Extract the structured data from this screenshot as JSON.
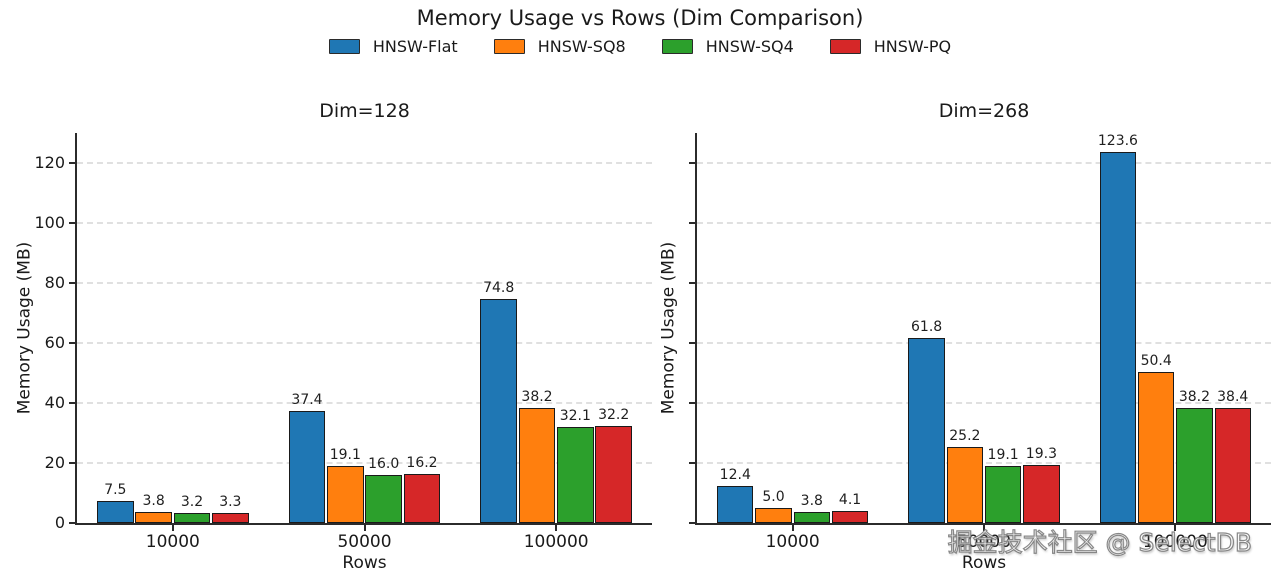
{
  "title": "Memory Usage vs Rows (Dim Comparison)",
  "watermark": "掘金技术社区 @ SelectDB",
  "colors": {
    "hnsw_flat": "#1f77b4",
    "hnsw_sq8": "#ff7f0e",
    "hnsw_sq4": "#2ca02c",
    "hnsw_pq": "#d62728",
    "axis": "#2b2b2b",
    "grid": "#e0e0e0"
  },
  "chart_data": [
    {
      "type": "bar",
      "title": "Dim=128",
      "xlabel": "Rows",
      "ylabel": "Memory Usage (MB)",
      "categories": [
        "10000",
        "50000",
        "100000"
      ],
      "series": [
        {
          "name": "HNSW-Flat",
          "color": "#1f77b4",
          "values": [
            7.5,
            37.4,
            74.8
          ]
        },
        {
          "name": "HNSW-SQ8",
          "color": "#ff7f0e",
          "values": [
            3.8,
            19.1,
            38.2
          ]
        },
        {
          "name": "HNSW-SQ4",
          "color": "#2ca02c",
          "values": [
            3.2,
            16.0,
            32.1
          ]
        },
        {
          "name": "HNSW-PQ",
          "color": "#d62728",
          "values": [
            3.3,
            16.2,
            32.2
          ]
        }
      ],
      "ylim": [
        0,
        130
      ],
      "yticks": [
        0,
        20,
        40,
        60,
        80,
        100,
        120
      ],
      "show_ytick_labels": true,
      "grid": true,
      "legend_position": "top-center-shared"
    },
    {
      "type": "bar",
      "title": "Dim=268",
      "xlabel": "Rows",
      "ylabel": "Memory Usage (MB)",
      "categories": [
        "10000",
        "50000",
        "100000"
      ],
      "series": [
        {
          "name": "HNSW-Flat",
          "color": "#1f77b4",
          "values": [
            12.4,
            61.8,
            123.6
          ]
        },
        {
          "name": "HNSW-SQ8",
          "color": "#ff7f0e",
          "values": [
            5.0,
            25.2,
            50.4
          ]
        },
        {
          "name": "HNSW-SQ4",
          "color": "#2ca02c",
          "values": [
            3.8,
            19.1,
            38.2
          ]
        },
        {
          "name": "HNSW-PQ",
          "color": "#d62728",
          "values": [
            4.1,
            19.3,
            38.4
          ]
        }
      ],
      "ylim": [
        0,
        130
      ],
      "yticks": [
        0,
        20,
        40,
        60,
        80,
        100,
        120
      ],
      "show_ytick_labels": false,
      "grid": true,
      "legend_position": "top-center-shared"
    }
  ]
}
